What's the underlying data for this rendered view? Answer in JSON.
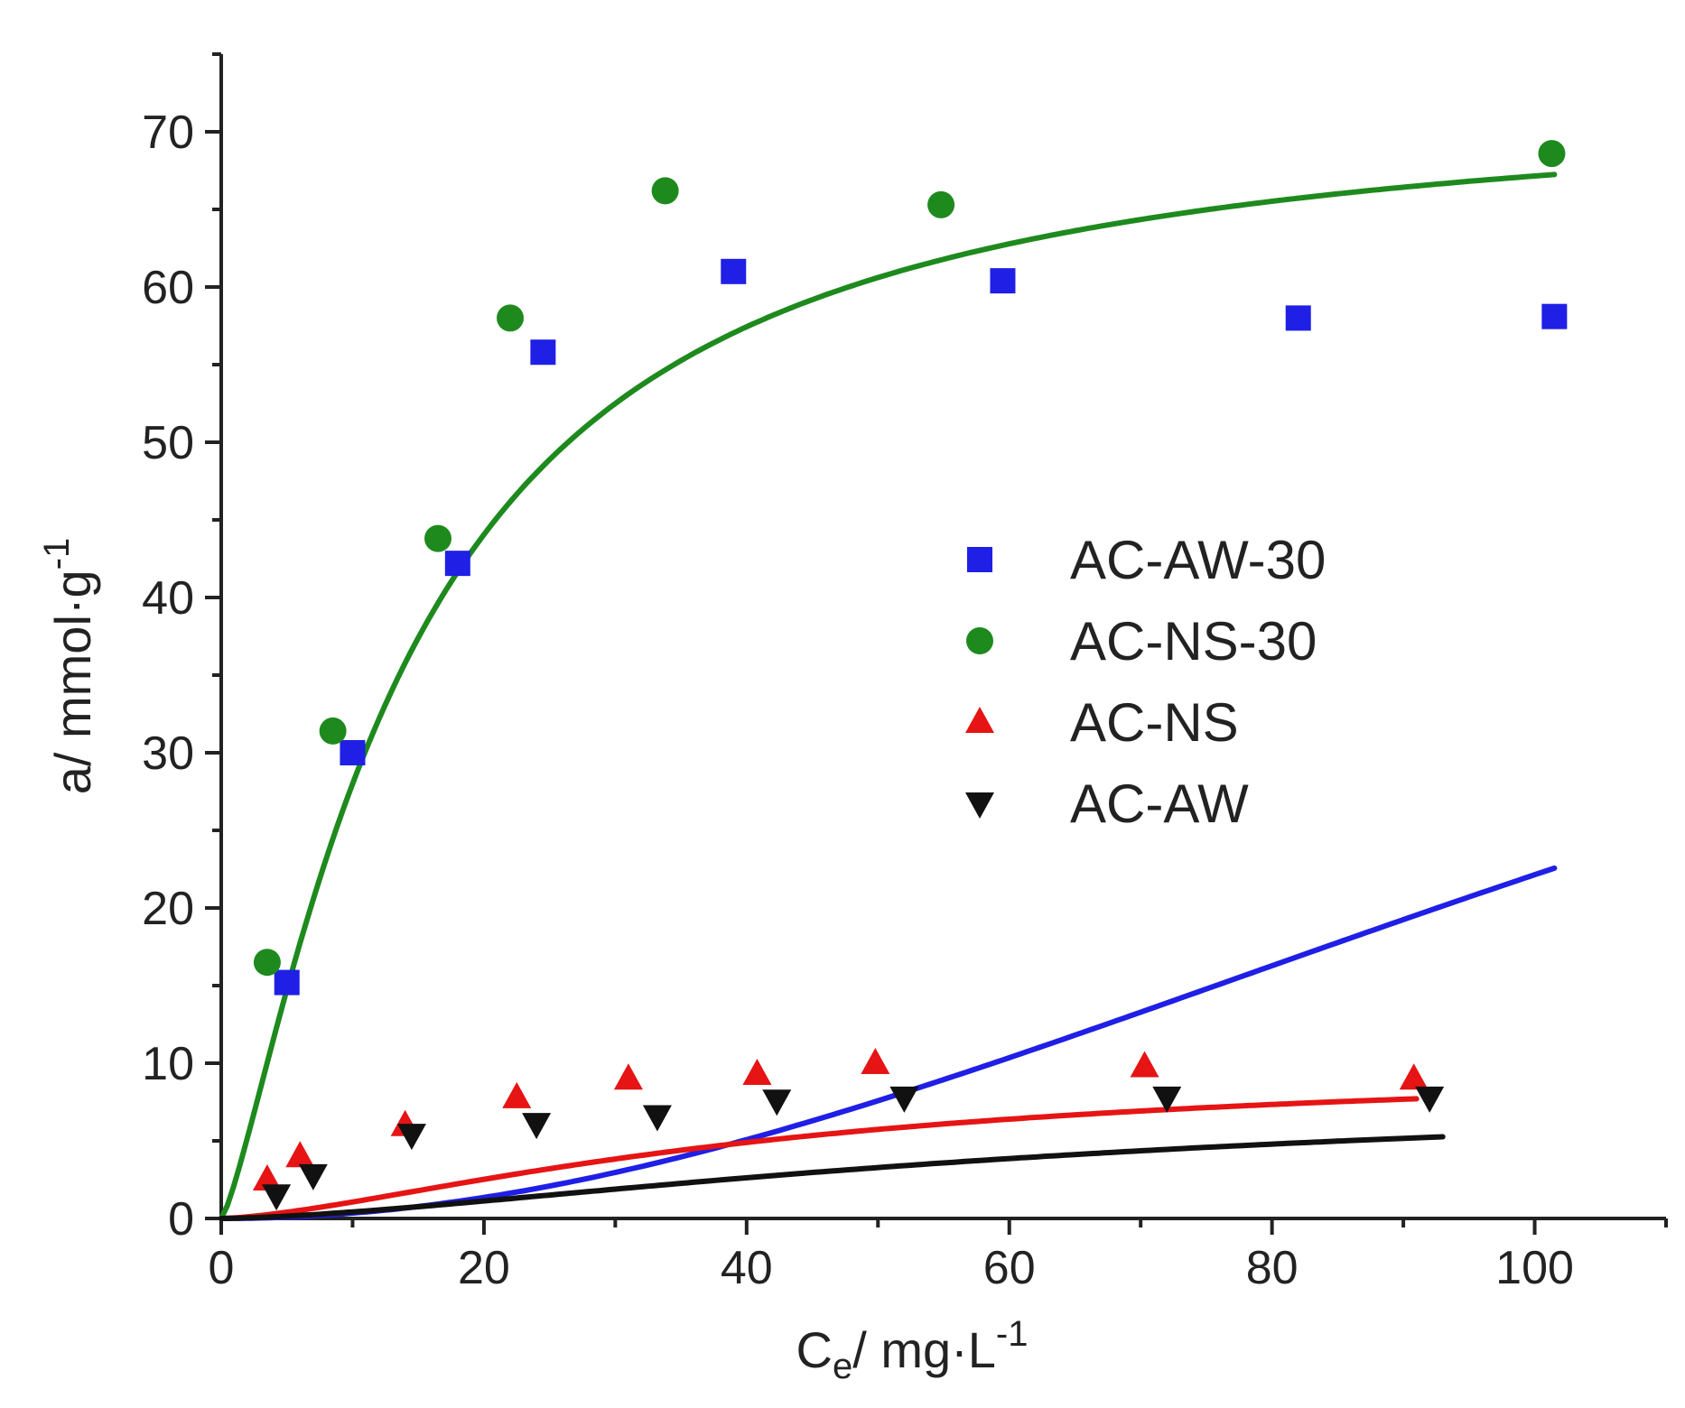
{
  "chart_data": {
    "type": "scatter",
    "title": "",
    "xlabel": {
      "main": "C",
      "sub": "e",
      "rest": "/ mg·L",
      "sup": "-1"
    },
    "ylabel": {
      "main": "a/ mmol·g",
      "sup": "-1"
    },
    "xlim": [
      0,
      110
    ],
    "ylim": [
      0,
      75
    ],
    "x_ticks": [
      0,
      20,
      40,
      60,
      80,
      100
    ],
    "x_tick_labels": [
      "0",
      "20",
      "40",
      "60",
      "80",
      "100"
    ],
    "y_ticks": [
      0,
      10,
      20,
      30,
      40,
      50,
      60,
      70
    ],
    "y_tick_labels": [
      "0",
      "10",
      "20",
      "30",
      "40",
      "50",
      "60",
      "70"
    ],
    "grid": false,
    "legend_position": "right-center",
    "series": [
      {
        "name": "AC-AW-30",
        "marker": "square",
        "color": "#1f1fe6",
        "points": [
          [
            5,
            15.2
          ],
          [
            10,
            30
          ],
          [
            18,
            42.2
          ],
          [
            24.5,
            55.8
          ],
          [
            39,
            61
          ],
          [
            59.5,
            60.4
          ],
          [
            82,
            58
          ],
          [
            101.5,
            58.1
          ]
        ],
        "fit": {
          "qmax": 61.5,
          "K": 0.0075,
          "n": 2.0,
          "x_end": 101.5
        }
      },
      {
        "name": "AC-NS-30",
        "marker": "circle",
        "color": "#1e8a1e",
        "points": [
          [
            3.5,
            16.5
          ],
          [
            8.5,
            31.4
          ],
          [
            16.5,
            43.8
          ],
          [
            22,
            58
          ],
          [
            33.8,
            66.2
          ],
          [
            54.8,
            65.3
          ],
          [
            101.3,
            68.6
          ]
        ],
        "fit": {
          "qmax": 72.5,
          "K": 0.07,
          "n": 1.3,
          "x_end": 101.5
        }
      },
      {
        "name": "AC-NS",
        "marker": "triangle-up",
        "color": "#e61414",
        "points": [
          [
            3.5,
            2.5
          ],
          [
            6,
            4
          ],
          [
            14,
            6
          ],
          [
            22.5,
            7.8
          ],
          [
            31,
            9.0
          ],
          [
            40.8,
            9.3
          ],
          [
            49.8,
            10.0
          ],
          [
            70.3,
            9.8
          ],
          [
            90.8,
            9.0
          ]
        ],
        "fit": {
          "qmax": 10.1,
          "K": 0.024,
          "n": 1.5,
          "x_end": 91
        }
      },
      {
        "name": "AC-AW",
        "marker": "triangle-down",
        "color": "#111111",
        "points": [
          [
            4.2,
            1.5
          ],
          [
            7,
            2.8
          ],
          [
            14.5,
            5.4
          ],
          [
            24,
            6.1
          ],
          [
            33.2,
            6.6
          ],
          [
            42.3,
            7.6
          ],
          [
            52,
            7.8
          ],
          [
            72,
            7.8
          ],
          [
            92,
            7.8
          ]
        ],
        "fit": {
          "qmax": 8.4,
          "K": 0.015,
          "n": 1.55,
          "x_end": 93
        }
      }
    ]
  }
}
